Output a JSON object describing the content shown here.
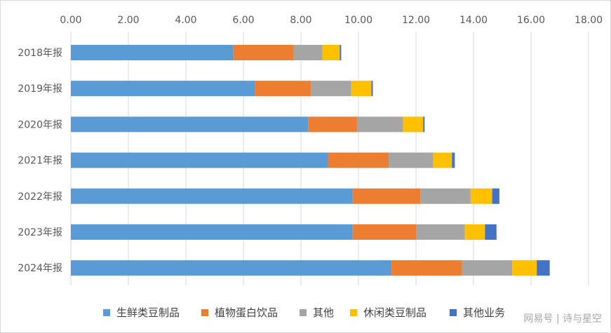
{
  "chart_data": {
    "type": "bar",
    "orientation": "horizontal",
    "stacked": true,
    "title": "",
    "xlabel": "",
    "ylabel": "",
    "xlim": [
      0,
      18
    ],
    "x_ticks": [
      "0.00",
      "2.00",
      "4.00",
      "6.00",
      "8.00",
      "10.00",
      "12.00",
      "14.00",
      "16.00",
      "18.00"
    ],
    "x_axis_position": "top",
    "grid": "vertical",
    "legend_position": "bottom",
    "categories": [
      "2018年报",
      "2019年报",
      "2020年报",
      "2021年报",
      "2022年报",
      "2023年报",
      "2024年报"
    ],
    "series": [
      {
        "name": "生鲜类豆制品",
        "color": "#5B9BD5",
        "values": [
          5.65,
          6.4,
          8.25,
          8.95,
          9.8,
          9.8,
          11.15
        ]
      },
      {
        "name": "植物蛋白饮品",
        "color": "#ED7D31",
        "values": [
          2.1,
          1.95,
          1.7,
          2.1,
          2.35,
          2.2,
          2.45
        ]
      },
      {
        "name": "其他",
        "color": "#A5A5A5",
        "values": [
          1.0,
          1.4,
          1.6,
          1.55,
          1.75,
          1.7,
          1.75
        ]
      },
      {
        "name": "休闲类豆制品",
        "color": "#FFC000",
        "values": [
          0.6,
          0.7,
          0.7,
          0.65,
          0.75,
          0.7,
          0.85
        ]
      },
      {
        "name": "其他业务",
        "color": "#4472C4",
        "values": [
          0.05,
          0.05,
          0.05,
          0.1,
          0.25,
          0.4,
          0.45
        ]
      }
    ]
  },
  "watermark": "网易号 | 诗与星空"
}
